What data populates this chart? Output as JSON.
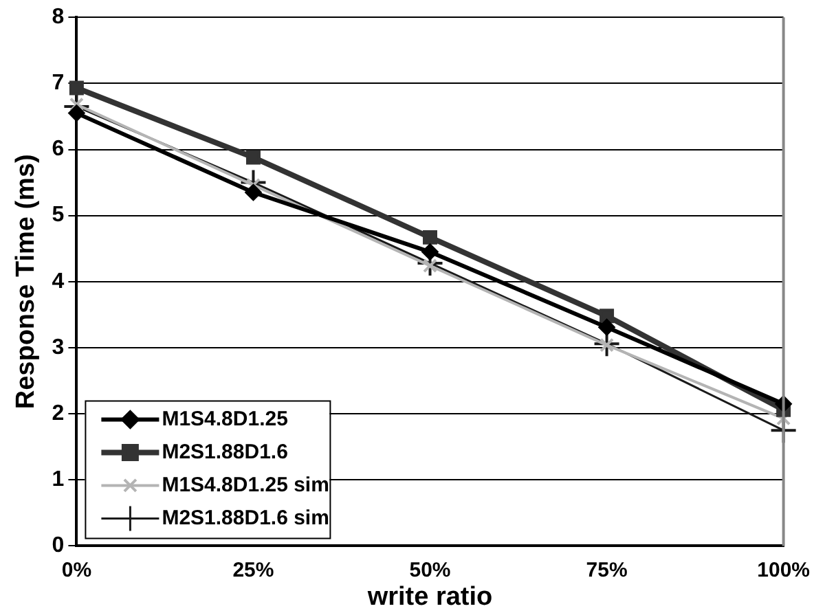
{
  "chart_data": {
    "type": "line",
    "xlabel": "write ratio",
    "ylabel": "Response Time (ms)",
    "categories": [
      "0%",
      "25%",
      "50%",
      "75%",
      "100%"
    ],
    "series": [
      {
        "name": "M1S4.8D1.25",
        "color": "#000000",
        "marker": "diamond",
        "values": [
          6.55,
          5.35,
          4.45,
          3.31,
          2.15
        ]
      },
      {
        "name": "M2S1.88D1.6",
        "color": "#333333",
        "marker": "square",
        "values": [
          6.93,
          5.88,
          4.67,
          3.48,
          2.06
        ]
      },
      {
        "name": "M1S4.8D1.25 sim",
        "color": "#b4b4b4",
        "marker": "cross",
        "values": [
          6.68,
          5.46,
          4.24,
          3.04,
          1.93
        ]
      },
      {
        "name": "M2S1.88D1.6 sim",
        "color": "#1a1a1a",
        "marker": "plus",
        "values": [
          6.65,
          5.5,
          4.28,
          3.06,
          1.75
        ]
      }
    ],
    "ylim": [
      0,
      8
    ],
    "yticks": [
      0,
      1,
      2,
      3,
      4,
      5,
      6,
      7,
      8
    ],
    "grid": "y",
    "legend": "bottom left"
  }
}
